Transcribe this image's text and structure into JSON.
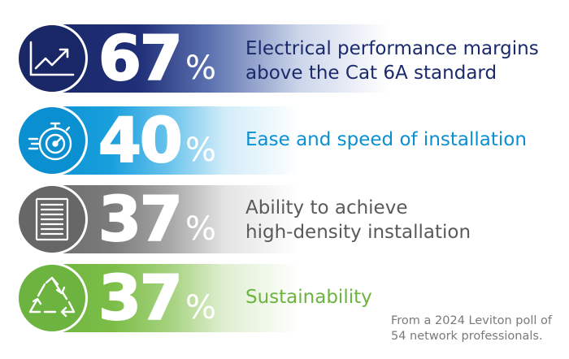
{
  "stats": [
    {
      "value": "67",
      "unit": "%",
      "label": "Electrical performance margins\nabove the Cat 6A standard",
      "icon": "trending-up-chart-icon",
      "color": "#1a2766"
    },
    {
      "value": "40",
      "unit": "%",
      "label": "Ease and speed of installation",
      "icon": "stopwatch-speed-icon",
      "color": "#0a8fd0"
    },
    {
      "value": "37",
      "unit": "%",
      "label": "Ability to achieve\nhigh-density installation",
      "icon": "server-rack-icon",
      "color": "#676767"
    },
    {
      "value": "37",
      "unit": "%",
      "label": "Sustainability",
      "icon": "recycle-icon",
      "color": "#6cb33f"
    }
  ],
  "source": "From a 2024 Leviton poll of\n54 network professionals."
}
